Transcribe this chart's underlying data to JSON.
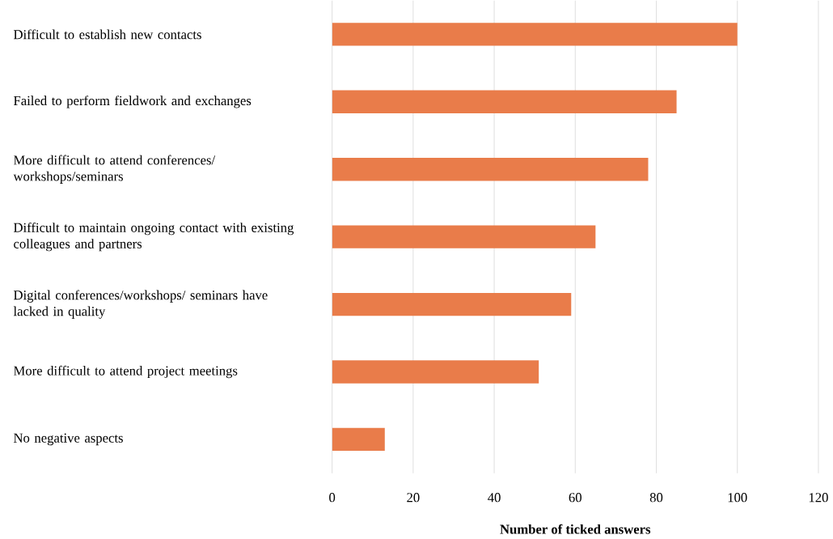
{
  "chart_data": {
    "type": "bar",
    "orientation": "horizontal",
    "categories": [
      "Difficult to establish new contacts",
      "Failed to perform fieldwork and exchanges",
      "More difficult to attend conferences/ workshops/seminars",
      "Difficult to maintain ongoing contact with existing colleagues and partners",
      "Digital conferences/workshops/ seminars have lacked in quality",
      "More difficult to attend project meetings",
      "No negative aspects"
    ],
    "values": [
      100,
      85,
      78,
      65,
      59,
      51,
      13
    ],
    "color": "#e97c4a",
    "xlim": [
      0,
      120
    ],
    "xticks": [
      0,
      20,
      40,
      60,
      80,
      100,
      120
    ],
    "xlabel": "Number of ticked answers",
    "grid": "x"
  }
}
